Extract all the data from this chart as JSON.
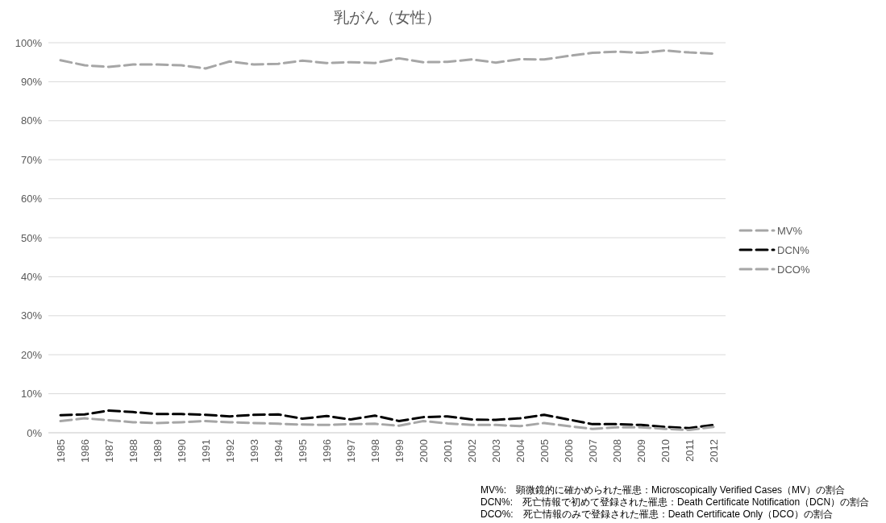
{
  "chart_data": {
    "type": "line",
    "title": "乳がん（女性）",
    "categories": [
      "1985",
      "1986",
      "1987",
      "1988",
      "1989",
      "1990",
      "1991",
      "1992",
      "1993",
      "1994",
      "1995",
      "1996",
      "1997",
      "1998",
      "1999",
      "2000",
      "2001",
      "2002",
      "2003",
      "2004",
      "2005",
      "2006",
      "2007",
      "2008",
      "2009",
      "2010",
      "2011",
      "2012"
    ],
    "series": [
      {
        "name": "MV%",
        "color": "#a6a6a6",
        "line_style": "dashed",
        "values": [
          95.5,
          94.2,
          93.8,
          94.4,
          94.4,
          94.2,
          93.4,
          95.2,
          94.4,
          94.6,
          95.4,
          94.8,
          95.0,
          94.8,
          96.0,
          95.0,
          95.1,
          95.7,
          94.9,
          95.8,
          95.7,
          96.6,
          97.4,
          97.7,
          97.4,
          98.0,
          97.5,
          97.2
        ]
      },
      {
        "name": "DCN%",
        "color": "#000000",
        "line_style": "dashed",
        "values": [
          4.5,
          4.7,
          5.7,
          5.3,
          4.8,
          4.8,
          4.6,
          4.2,
          4.6,
          4.7,
          3.6,
          4.3,
          3.4,
          4.4,
          3.0,
          4.0,
          4.2,
          3.4,
          3.3,
          3.7,
          4.6,
          3.4,
          2.2,
          2.2,
          2.0,
          1.5,
          1.2,
          2.0
        ]
      },
      {
        "name": "DCO%",
        "color": "#a6a6a6",
        "line_style": "dashed",
        "values": [
          3.0,
          3.7,
          3.2,
          2.7,
          2.5,
          2.7,
          3.0,
          2.7,
          2.5,
          2.3,
          2.1,
          2.0,
          2.2,
          2.3,
          1.8,
          3.0,
          2.4,
          2.0,
          2.0,
          1.7,
          2.5,
          1.7,
          1.0,
          1.4,
          1.4,
          1.0,
          0.7,
          1.5
        ]
      }
    ],
    "ylim": [
      0,
      100
    ],
    "yticks": [
      {
        "value": 0,
        "label": "0%"
      },
      {
        "value": 10,
        "label": "10%"
      },
      {
        "value": 20,
        "label": "20%"
      },
      {
        "value": 30,
        "label": "30%"
      },
      {
        "value": 40,
        "label": "40%"
      },
      {
        "value": 50,
        "label": "50%"
      },
      {
        "value": 60,
        "label": "60%"
      },
      {
        "value": 70,
        "label": "70%"
      },
      {
        "value": 80,
        "label": "80%"
      },
      {
        "value": 90,
        "label": "90%"
      },
      {
        "value": 100,
        "label": "100%"
      }
    ],
    "grid": "y",
    "legend": "right",
    "marker": "none",
    "annotations": [
      "MV%:　顕微鏡的に確かめられた罹患：Microscopically Verified Cases（MV）の割合",
      "DCN%:　死亡情報で初めて登録された罹患：Death Certificate Notification（DCN）の割合",
      "DCO%:　死亡情報のみで登録された罹患：Death Certificate Only（DCO）の割合"
    ]
  }
}
